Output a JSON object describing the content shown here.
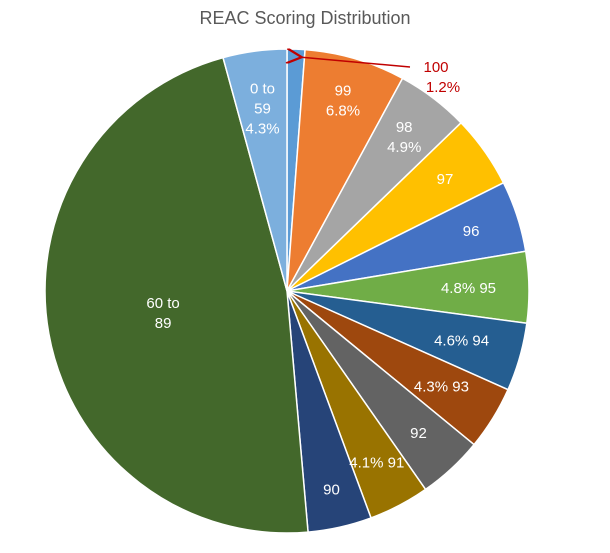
{
  "chart_data": {
    "type": "pie",
    "title": "REAC Scoring Distribution",
    "slices": [
      {
        "category": "100",
        "value": 1.2,
        "value_label": "1.2%",
        "color": "#5b9bd5"
      },
      {
        "category": "99",
        "value": 6.8,
        "value_label": "6.8%",
        "color": "#ed7d31"
      },
      {
        "category": "98",
        "value": 4.9,
        "value_label": "4.9%",
        "color": "#a5a5a5"
      },
      {
        "category": "97",
        "value": 4.9,
        "value_label": "",
        "color": "#ffc000"
      },
      {
        "category": "96",
        "value": 4.8,
        "value_label": "",
        "color": "#4472c4"
      },
      {
        "category": "95",
        "value": 4.8,
        "value_label": "4.8%",
        "color": "#70ad47"
      },
      {
        "category": "94",
        "value": 4.6,
        "value_label": "4.6%",
        "color": "#255e91"
      },
      {
        "category": "93",
        "value": 4.3,
        "value_label": "4.3%",
        "color": "#9e480e"
      },
      {
        "category": "92",
        "value": 4.4,
        "value_label": "",
        "color": "#636363"
      },
      {
        "category": "91",
        "value": 4.1,
        "value_label": "4.1%",
        "color": "#997300"
      },
      {
        "category": "90",
        "value": 4.3,
        "value_label": "",
        "color": "#264478"
      },
      {
        "category": "60 to 89",
        "value": 47.6,
        "value_label": "",
        "color": "#43682b"
      },
      {
        "category": "0 to 59",
        "value": 4.3,
        "value_label": "4.3%",
        "color": "#7cafdd"
      }
    ]
  }
}
